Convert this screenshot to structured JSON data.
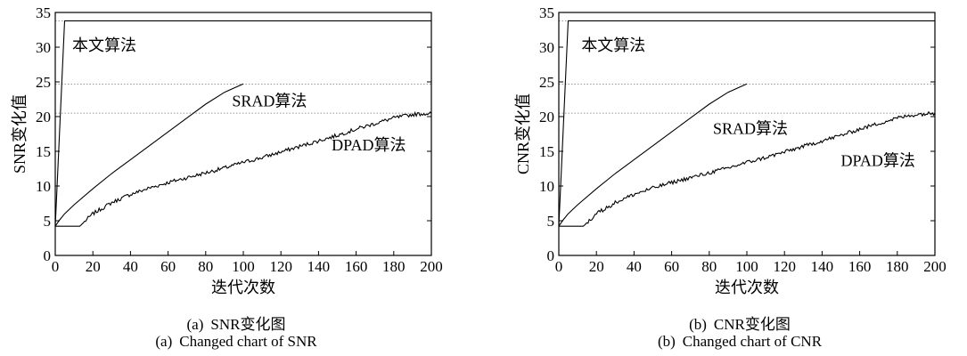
{
  "charts": [
    {
      "caption_prefix": "(a)",
      "caption_cn": "SNR变化图",
      "caption_en_prefix": "(a)",
      "caption_en": "Changed chart of SNR"
    },
    {
      "caption_prefix": "(b)",
      "caption_cn": "CNR变化图",
      "caption_en_prefix": "(b)",
      "caption_en": "Changed chart of CNR"
    }
  ],
  "chart_data": [
    {
      "type": "line",
      "xlabel": "迭代次数",
      "ylabel": "SNR变化值",
      "xlim": [
        0,
        200
      ],
      "ylim": [
        0,
        35
      ],
      "xticks": [
        0,
        20,
        40,
        60,
        80,
        100,
        120,
        140,
        160,
        180,
        200
      ],
      "yticks": [
        0,
        5,
        10,
        15,
        20,
        25,
        30,
        35
      ],
      "grid": "dotted horizontal reference lines at 20.5, 24.7, 33.8",
      "ref_lines": [
        20.5,
        24.7,
        33.8
      ],
      "series": [
        {
          "name": "本文算法",
          "x": [
            0,
            5,
            5
          ],
          "y": [
            4.2,
            33.8,
            33.8
          ]
        },
        {
          "name": "SRAD算法",
          "x": [
            0,
            2,
            5,
            10,
            20,
            30,
            40,
            50,
            60,
            70,
            80,
            90,
            100
          ],
          "y": [
            4.2,
            5.0,
            6.0,
            7.3,
            9.6,
            11.8,
            13.8,
            15.8,
            17.8,
            19.8,
            21.8,
            23.5,
            24.7
          ]
        },
        {
          "name": "DPAD算法",
          "x": [
            0,
            13,
            20,
            30,
            40,
            50,
            60,
            70,
            80,
            90,
            100,
            110,
            120,
            130,
            140,
            150,
            160,
            170,
            180,
            190,
            200
          ],
          "y": [
            4.2,
            4.2,
            6.0,
            7.6,
            8.8,
            9.7,
            10.5,
            11.2,
            11.9,
            12.6,
            13.4,
            14.1,
            14.9,
            15.7,
            16.5,
            17.3,
            18.2,
            19.0,
            19.8,
            20.3,
            20.5
          ]
        }
      ],
      "annotations": [
        {
          "text": "本文算法",
          "x": 9,
          "y": 29.5
        },
        {
          "text": "SRAD算法",
          "x": 94,
          "y": 21.5
        },
        {
          "text": "DPAD算法",
          "x": 147,
          "y": 15.1
        }
      ]
    },
    {
      "type": "line",
      "xlabel": "迭代次数",
      "ylabel": "CNR变化值",
      "xlim": [
        0,
        200
      ],
      "ylim": [
        0,
        35
      ],
      "xticks": [
        0,
        20,
        40,
        60,
        80,
        100,
        120,
        140,
        160,
        180,
        200
      ],
      "yticks": [
        0,
        5,
        10,
        15,
        20,
        25,
        30,
        35
      ],
      "grid": "dotted horizontal reference lines at 20.5, 24.7, 33.8",
      "ref_lines": [
        20.5,
        24.7,
        33.8
      ],
      "series": [
        {
          "name": "本文算法",
          "x": [
            0,
            5,
            5
          ],
          "y": [
            4.2,
            33.8,
            33.8
          ]
        },
        {
          "name": "SRAD算法",
          "x": [
            0,
            2,
            5,
            10,
            20,
            30,
            40,
            50,
            60,
            70,
            80,
            90,
            100
          ],
          "y": [
            4.2,
            5.0,
            6.0,
            7.3,
            9.6,
            11.8,
            13.8,
            15.8,
            17.8,
            19.8,
            21.8,
            23.5,
            24.7
          ]
        },
        {
          "name": "DPAD算法",
          "x": [
            0,
            13,
            20,
            30,
            40,
            50,
            60,
            70,
            80,
            90,
            100,
            110,
            120,
            130,
            140,
            150,
            160,
            170,
            180,
            190,
            200
          ],
          "y": [
            4.2,
            4.2,
            6.0,
            7.6,
            8.8,
            9.7,
            10.5,
            11.2,
            11.9,
            12.6,
            13.4,
            14.1,
            14.9,
            15.7,
            16.5,
            17.3,
            18.2,
            19.0,
            19.8,
            20.3,
            20.5
          ]
        }
      ],
      "annotations": [
        {
          "text": "本文算法",
          "x": 12,
          "y": 29.5
        },
        {
          "text": "SRAD算法",
          "x": 82,
          "y": 17.5
        },
        {
          "text": "DPAD算法",
          "x": 150,
          "y": 12.9
        }
      ]
    }
  ]
}
